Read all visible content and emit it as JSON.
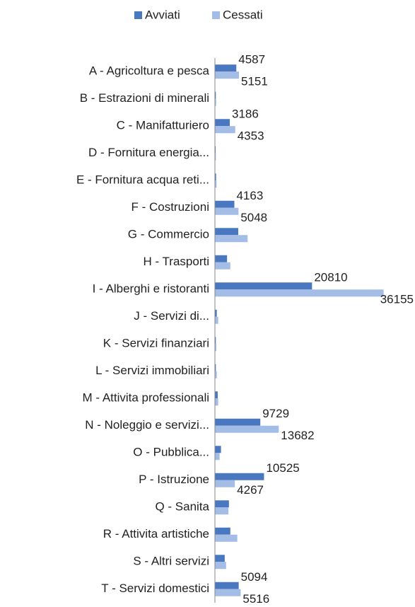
{
  "chart_data": {
    "type": "hbar",
    "categories": [
      "A - Agricoltura e pesca",
      "B - Estrazioni di minerali",
      "C - Manifatturiero",
      "D - Fornitura energia...",
      "E - Fornitura acqua reti...",
      "F - Costruzioni",
      "G - Commercio",
      "H - Trasporti",
      "I - Alberghi e ristoranti",
      "J - Servizi di...",
      "K - Servizi finanziari",
      "L - Servizi immobiliari",
      "M - Attivita professionali",
      "N - Noleggio e servizi...",
      "O - Pubblica...",
      "P - Istruzione",
      "Q - Sanita",
      "R - Attivita artistiche",
      "S - Altri servizi",
      "T - Servizi domestici"
    ],
    "series": [
      {
        "name": "Avviati",
        "color": "#4a78c0",
        "values": [
          4587,
          200,
          3186,
          150,
          250,
          4163,
          5000,
          2600,
          20810,
          400,
          200,
          200,
          600,
          9729,
          1300,
          10525,
          3000,
          3300,
          2100,
          5094
        ],
        "value_labels": [
          "4587",
          null,
          "3186",
          null,
          null,
          "4163",
          null,
          null,
          "20810",
          null,
          null,
          null,
          null,
          "9729",
          null,
          "10525",
          null,
          null,
          null,
          "5094"
        ]
      },
      {
        "name": "Cessati",
        "color": "#a3bde6",
        "values": [
          5151,
          250,
          4353,
          200,
          350,
          5048,
          7000,
          3300,
          36155,
          700,
          300,
          400,
          700,
          13682,
          1000,
          4267,
          2900,
          4800,
          2400,
          5516
        ],
        "value_labels": [
          "5151",
          null,
          "4353",
          null,
          null,
          "5048",
          null,
          null,
          "36155",
          null,
          null,
          null,
          null,
          "13682",
          null,
          "4267",
          null,
          null,
          null,
          "5516"
        ]
      }
    ],
    "xlim": [
      0,
      40000
    ],
    "legend": "top"
  }
}
